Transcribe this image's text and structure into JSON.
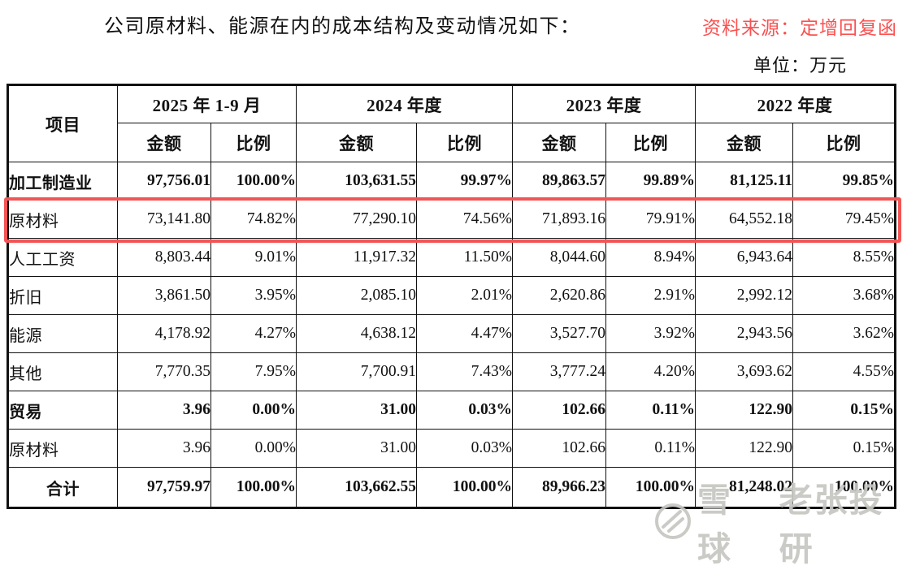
{
  "header": {
    "title": "公司原材料、能源在内的成本结构及变动情况如下：",
    "source_note": "资料来源：定增回复函",
    "unit_note": "单位：万元"
  },
  "colors": {
    "accent_red": "#fa5151",
    "highlight_border": "#f25555",
    "watermark_gray": "#c6c6c2"
  },
  "table": {
    "item_header": "项目",
    "amount_label": "金额",
    "ratio_label": "比例",
    "periods": [
      {
        "label": "2025 年 1-9 月"
      },
      {
        "label": "2024 年度"
      },
      {
        "label": "2023 年度"
      },
      {
        "label": "2022 年度"
      }
    ],
    "rows": [
      {
        "label": "加工制造业",
        "bold": true,
        "highlight": false,
        "center_label": false,
        "values": [
          "97,756.01",
          "100.00%",
          "103,631.55",
          "99.97%",
          "89,863.57",
          "99.89%",
          "81,125.11",
          "99.85%"
        ]
      },
      {
        "label": "原材料",
        "bold": false,
        "highlight": true,
        "center_label": false,
        "values": [
          "73,141.80",
          "74.82%",
          "77,290.10",
          "74.56%",
          "71,893.16",
          "79.91%",
          "64,552.18",
          "79.45%"
        ]
      },
      {
        "label": "人工工资",
        "bold": false,
        "highlight": false,
        "center_label": false,
        "values": [
          "8,803.44",
          "9.01%",
          "11,917.32",
          "11.50%",
          "8,044.60",
          "8.94%",
          "6,943.64",
          "8.55%"
        ]
      },
      {
        "label": "折旧",
        "bold": false,
        "highlight": false,
        "center_label": false,
        "values": [
          "3,861.50",
          "3.95%",
          "2,085.10",
          "2.01%",
          "2,620.86",
          "2.91%",
          "2,992.12",
          "3.68%"
        ]
      },
      {
        "label": "能源",
        "bold": false,
        "highlight": false,
        "center_label": false,
        "values": [
          "4,178.92",
          "4.27%",
          "4,638.12",
          "4.47%",
          "3,527.70",
          "3.92%",
          "2,943.56",
          "3.62%"
        ]
      },
      {
        "label": "其他",
        "bold": false,
        "highlight": false,
        "center_label": false,
        "values": [
          "7,770.35",
          "7.95%",
          "7,700.91",
          "7.43%",
          "3,777.24",
          "4.20%",
          "3,693.62",
          "4.55%"
        ]
      },
      {
        "label": "贸易",
        "bold": true,
        "highlight": false,
        "center_label": false,
        "values": [
          "3.96",
          "0.00%",
          "31.00",
          "0.03%",
          "102.66",
          "0.11%",
          "122.90",
          "0.15%"
        ]
      },
      {
        "label": "原材料",
        "bold": false,
        "highlight": false,
        "center_label": false,
        "values": [
          "3.96",
          "0.00%",
          "31.00",
          "0.03%",
          "102.66",
          "0.11%",
          "122.90",
          "0.15%"
        ]
      },
      {
        "label": "合计",
        "bold": true,
        "highlight": false,
        "center_label": true,
        "values": [
          "97,759.97",
          "100.00%",
          "103,662.55",
          "100.00%",
          "89,966.23",
          "100.00%",
          "81,248.02",
          "100.00%"
        ]
      }
    ]
  },
  "watermark": {
    "logo": "xueqiu-snowball-icon",
    "brand": "雪球",
    "account": "老张投研"
  }
}
